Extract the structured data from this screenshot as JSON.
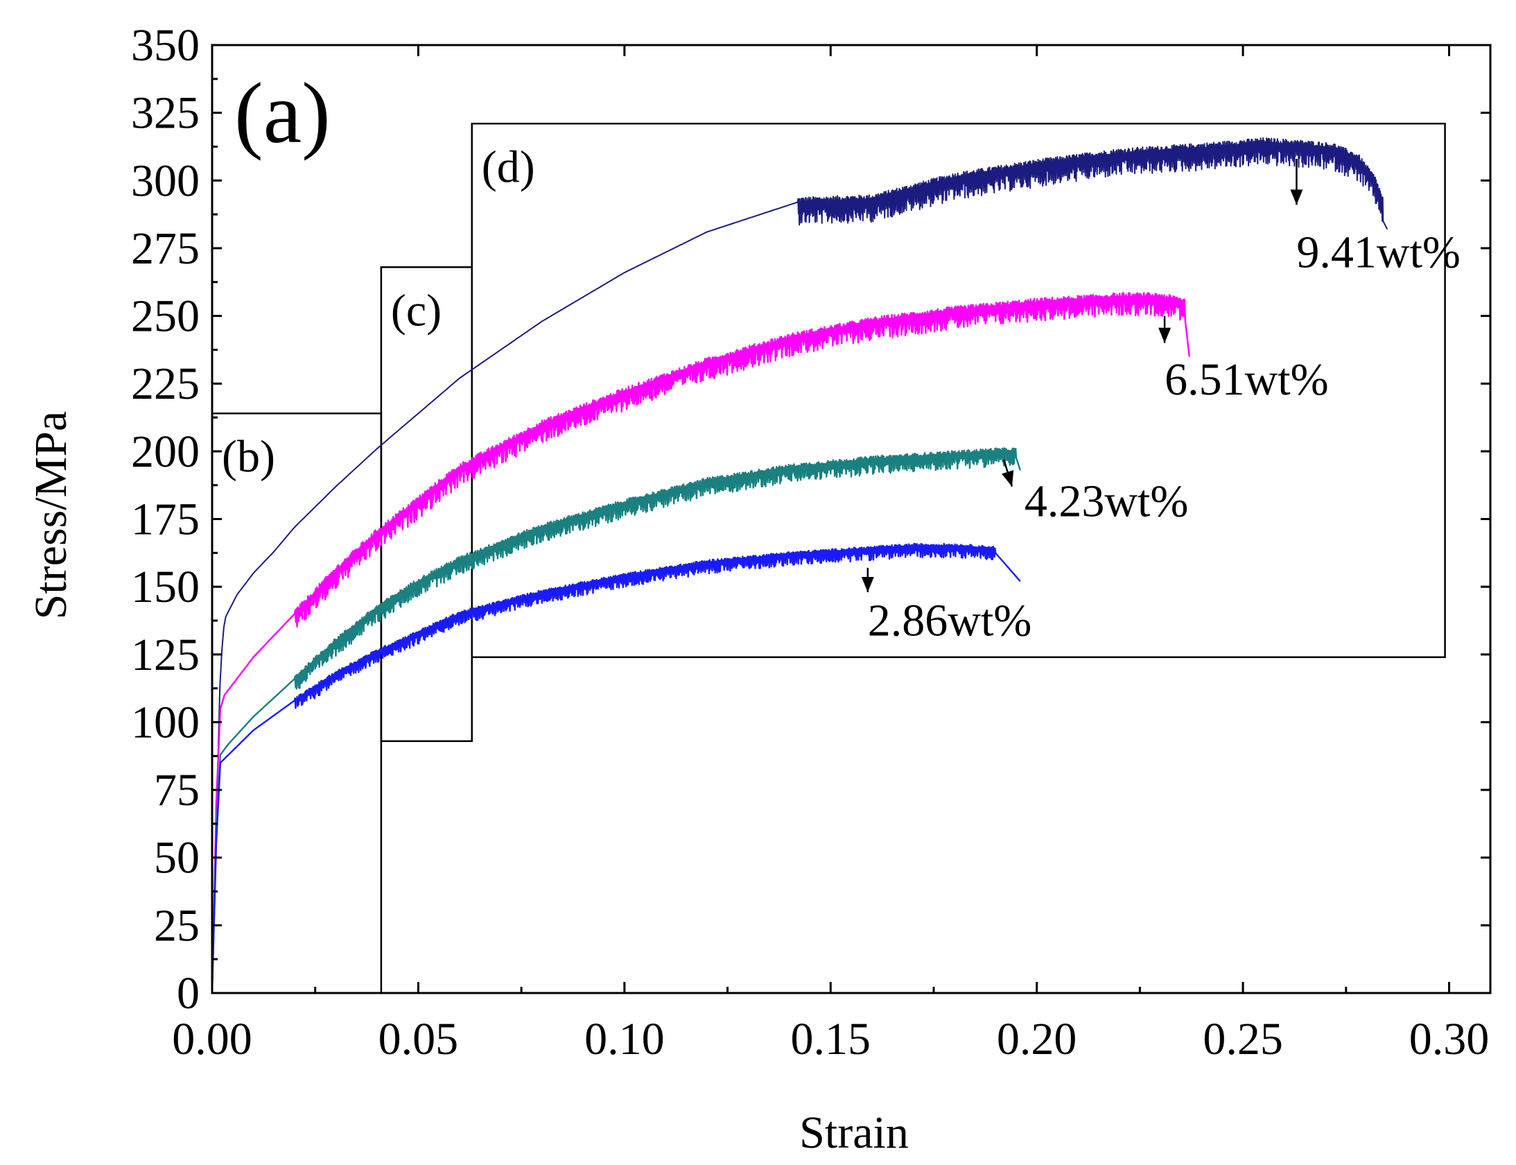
{
  "chart_data": {
    "type": "line",
    "panel_label": "(a)",
    "xlabel": "Strain",
    "ylabel": "Stress/MPa",
    "xlim": [
      0.0,
      0.31
    ],
    "ylim": [
      0,
      350
    ],
    "xticks": [
      0.0,
      0.05,
      0.1,
      0.15,
      0.2,
      0.25,
      0.3
    ],
    "xtick_labels": [
      "0.00",
      "0.05",
      "0.10",
      "0.15",
      "0.20",
      "0.25",
      "0.30"
    ],
    "yticks": [
      0,
      25,
      50,
      75,
      100,
      125,
      150,
      175,
      200,
      225,
      250,
      275,
      300,
      325,
      350
    ],
    "ytick_labels": [
      "0",
      "25",
      "50",
      "75",
      "100",
      "125",
      "150",
      "175",
      "200",
      "225",
      "250",
      "275",
      "300",
      "325",
      "350"
    ],
    "grid": false,
    "series": [
      {
        "name": "9.41wt%",
        "color": "#1c1c80",
        "serration_start": 0.142,
        "serration_amplitude": 6,
        "x": [
          0.0,
          0.001,
          0.002,
          0.003,
          0.004,
          0.006,
          0.01,
          0.015,
          0.02,
          0.03,
          0.04,
          0.05,
          0.06,
          0.08,
          0.1,
          0.12,
          0.142,
          0.16,
          0.18,
          0.2,
          0.22,
          0.24,
          0.255,
          0.265,
          0.272,
          0.278,
          0.282,
          0.284,
          0.285
        ],
        "y": [
          0,
          60,
          120,
          138,
          141,
          147,
          155,
          163,
          172,
          187,
          201,
          214,
          227,
          248,
          266,
          281,
          292,
          293,
          301,
          306,
          310,
          312,
          314,
          313,
          312,
          308,
          300,
          292,
          282
        ]
      },
      {
        "name": "6.51wt%",
        "color": "#ff00ff",
        "serration_start": 0.02,
        "serration_amplitude": 5,
        "x": [
          0.0,
          0.001,
          0.002,
          0.003,
          0.005,
          0.01,
          0.02,
          0.03,
          0.04,
          0.05,
          0.06,
          0.08,
          0.1,
          0.12,
          0.14,
          0.16,
          0.18,
          0.2,
          0.22,
          0.23,
          0.236,
          0.237
        ],
        "y": [
          0,
          70,
          105,
          110,
          114,
          124,
          140,
          156,
          170,
          182,
          194,
          210,
          222,
          233,
          242,
          248,
          252,
          255,
          257,
          257,
          255,
          235
        ]
      },
      {
        "name": "4.23wt%",
        "color": "#1a8080",
        "serration_start": 0.02,
        "serration_amplitude": 4,
        "x": [
          0.0,
          0.001,
          0.002,
          0.004,
          0.01,
          0.02,
          0.03,
          0.04,
          0.05,
          0.06,
          0.08,
          0.1,
          0.12,
          0.14,
          0.16,
          0.18,
          0.19,
          0.195,
          0.196
        ],
        "y": [
          0,
          60,
          88,
          92,
          102,
          116,
          130,
          142,
          152,
          160,
          172,
          181,
          189,
          194,
          197,
          199,
          200,
          200,
          193
        ]
      },
      {
        "name": "2.86wt%",
        "color": "#1a1aff",
        "serration_start": 0.02,
        "serration_amplitude": 3,
        "x": [
          0.0,
          0.001,
          0.002,
          0.004,
          0.01,
          0.02,
          0.03,
          0.04,
          0.05,
          0.06,
          0.08,
          0.1,
          0.12,
          0.14,
          0.16,
          0.17,
          0.18,
          0.19,
          0.196
        ],
        "y": [
          0,
          55,
          85,
          88,
          97,
          108,
          118,
          126,
          133,
          140,
          148,
          154,
          159,
          162,
          164,
          165,
          165,
          164,
          152
        ]
      }
    ],
    "annotations": [
      {
        "text": "9.41wt%",
        "x": 0.263,
        "y": 268,
        "arrow_from": [
          0.263,
          308
        ],
        "arrow_to": [
          0.263,
          291
        ]
      },
      {
        "text": "6.51wt%",
        "x": 0.231,
        "y": 221,
        "arrow_from": [
          0.231,
          250
        ],
        "arrow_to": [
          0.231,
          240
        ]
      },
      {
        "text": "4.23wt%",
        "x": 0.197,
        "y": 176,
        "arrow_from": [
          0.192,
          197
        ],
        "arrow_to": [
          0.194,
          187
        ]
      },
      {
        "text": "2.86wt%",
        "x": 0.159,
        "y": 132,
        "arrow_from": [
          0.159,
          157
        ],
        "arrow_to": [
          0.159,
          148
        ]
      }
    ],
    "regions": [
      {
        "label": "(b)",
        "x0": 0.0,
        "x1": 0.041,
        "y0": 0,
        "y1": 214
      },
      {
        "label": "(c)",
        "x0": 0.041,
        "x1": 0.063,
        "y0": 93,
        "y1": 268
      },
      {
        "label": "(d)",
        "x0": 0.063,
        "x1": 0.299,
        "y0": 124,
        "y1": 321
      }
    ]
  }
}
